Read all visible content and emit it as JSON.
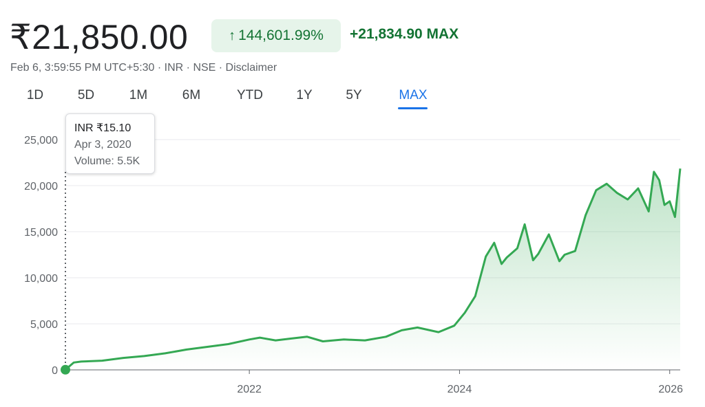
{
  "header": {
    "price": "₹21,850.00",
    "change_percent": "144,601.99%",
    "change_arrow": "↑",
    "change_absolute": "+21,834.90 MAX",
    "meta": "Feb 6, 3:59:55 PM UTC+5:30 · INR · NSE · Disclaimer"
  },
  "tabs": [
    {
      "label": "1D",
      "active": false
    },
    {
      "label": "5D",
      "active": false
    },
    {
      "label": "1M",
      "active": false
    },
    {
      "label": "6M",
      "active": false
    },
    {
      "label": "YTD",
      "active": false
    },
    {
      "label": "1Y",
      "active": false
    },
    {
      "label": "5Y",
      "active": false
    },
    {
      "label": "MAX",
      "active": true
    }
  ],
  "tooltip": {
    "price": "INR ₹15.10",
    "date": "Apr 3, 2020",
    "volume": "Volume: 5.5K"
  },
  "colors": {
    "line": "#34a853",
    "positive_text": "#137333",
    "active_tab": "#1a73e8"
  },
  "chart_data": {
    "type": "area",
    "title": "",
    "xlabel": "",
    "ylabel": "",
    "x_ticks": [
      2022,
      2024,
      2026
    ],
    "y_ticks": [
      "0",
      "5,000",
      "10,000",
      "15,000",
      "20,000",
      "25,000"
    ],
    "y_tick_values": [
      0,
      5000,
      10000,
      15000,
      20000,
      25000
    ],
    "ylim": [
      0,
      25000
    ],
    "xlim": [
      2020.25,
      2026.1
    ],
    "grid": true,
    "series": [
      {
        "x": [
          2020.25,
          2020.33,
          2020.4,
          2020.6,
          2020.8,
          2021.0,
          2021.2,
          2021.4,
          2021.6,
          2021.8,
          2022.0,
          2022.1,
          2022.25,
          2022.4,
          2022.55,
          2022.7,
          2022.9,
          2023.1,
          2023.3,
          2023.45,
          2023.6,
          2023.8,
          2023.95,
          2024.05,
          2024.15,
          2024.25,
          2024.33,
          2024.4,
          2024.45,
          2024.55,
          2024.62,
          2024.7,
          2024.75,
          2024.85,
          2024.95,
          2025.0,
          2025.1,
          2025.2,
          2025.3,
          2025.4,
          2025.5,
          2025.6,
          2025.7,
          2025.8,
          2025.85,
          2025.9,
          2025.95,
          2026.0,
          2026.05,
          2026.1
        ],
        "y": [
          15.1,
          800,
          900,
          1000,
          1300,
          1500,
          1800,
          2200,
          2500,
          2800,
          3300,
          3500,
          3200,
          3400,
          3600,
          3100,
          3300,
          3200,
          3600,
          4300,
          4600,
          4100,
          4800,
          6200,
          8000,
          12300,
          13800,
          11500,
          12200,
          13200,
          15800,
          11900,
          12600,
          14700,
          11800,
          12500,
          12900,
          16800,
          19500,
          20200,
          19200,
          18500,
          19700,
          17200,
          21500,
          20600,
          17900,
          18300,
          16600,
          21850
        ]
      }
    ]
  }
}
